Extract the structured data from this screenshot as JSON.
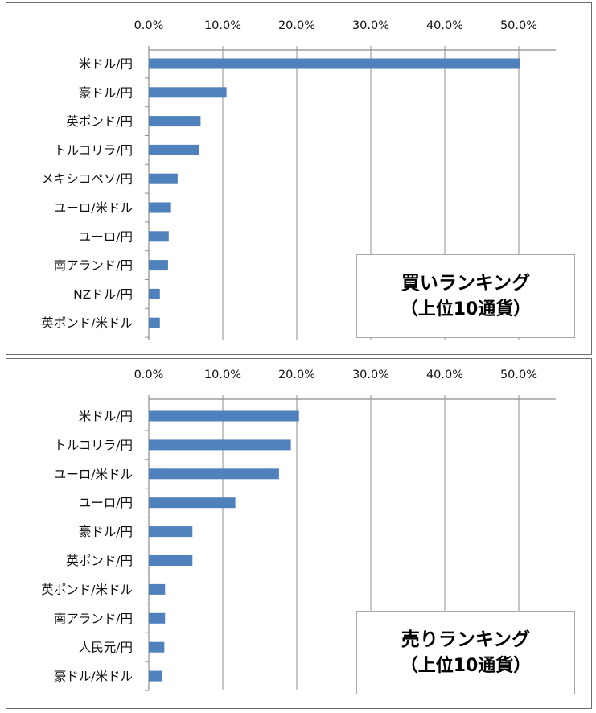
{
  "chart_data": [
    {
      "type": "bar",
      "orientation": "horizontal",
      "title": "買いランキング",
      "subtitle": "（上位10通貨）",
      "xlabel": "",
      "ylabel": "",
      "xlim": [
        0,
        0.55
      ],
      "ticks": [
        "0.0%",
        "10.0%",
        "20.0%",
        "30.0%",
        "40.0%",
        "50.0%"
      ],
      "tick_values": [
        0,
        0.1,
        0.2,
        0.3,
        0.4,
        0.5
      ],
      "categories": [
        "米ドル/円",
        "豪ドル/円",
        "英ポンド/円",
        "トルコリラ/円",
        "メキシコペソ/円",
        "ユーロ/米ドル",
        "ユーロ/円",
        "南アランド/円",
        "NZドル/円",
        "英ポンド/米ドル"
      ],
      "values": [
        0.502,
        0.105,
        0.07,
        0.068,
        0.039,
        0.029,
        0.027,
        0.026,
        0.015,
        0.015
      ],
      "grid": "vertical",
      "bar_color": "#4F81BD",
      "axis_position": "top"
    },
    {
      "type": "bar",
      "orientation": "horizontal",
      "title": "売りランキング",
      "subtitle": "（上位10通貨）",
      "xlabel": "",
      "ylabel": "",
      "xlim": [
        0,
        0.55
      ],
      "ticks": [
        "0.0%",
        "10.0%",
        "20.0%",
        "30.0%",
        "40.0%",
        "50.0%"
      ],
      "tick_values": [
        0,
        0.1,
        0.2,
        0.3,
        0.4,
        0.5
      ],
      "categories": [
        "米ドル/円",
        "トルコリラ/円",
        "ユーロ/米ドル",
        "ユーロ/円",
        "豪ドル/円",
        "英ポンド/円",
        "英ポンド/米ドル",
        "南アランド/円",
        "人民元/円",
        "豪ドル/米ドル"
      ],
      "values": [
        0.203,
        0.192,
        0.176,
        0.117,
        0.059,
        0.059,
        0.022,
        0.022,
        0.021,
        0.018
      ],
      "grid": "vertical",
      "bar_color": "#4F81BD",
      "axis_position": "top"
    }
  ]
}
